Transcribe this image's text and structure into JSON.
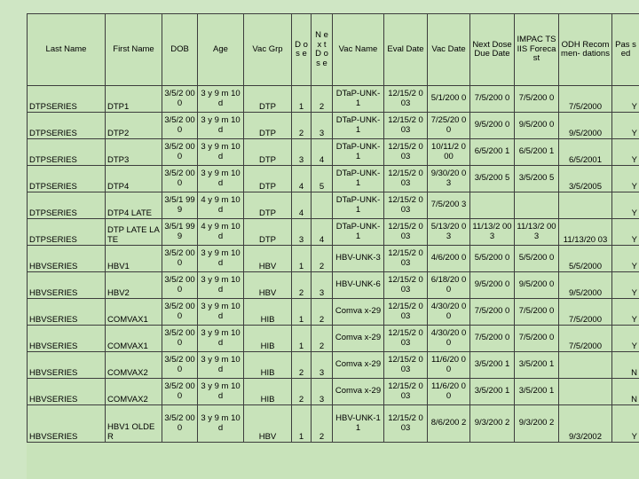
{
  "headers": [
    "Last Name",
    "First Name",
    "DOB",
    "Age",
    "Vac Grp",
    "D os e",
    "N ex t D os e",
    "Vac Name",
    "Eval Date",
    "Vac Date",
    "Next Dose Due Date",
    "IMPAC TSIIS Foreca st",
    "ODH Recom men- dations",
    "Pas sed"
  ],
  "rows": [
    {
      "last": "DTPSERIES",
      "first": "DTP1",
      "dob": "3/5/2 000",
      "age": "3 y 9 m 10 d",
      "grp": "DTP",
      "dose": "1",
      "next_dose": "2",
      "vac_name": "DTaP-UNK-1",
      "eval": "12/15/2 003",
      "vac_date": "5/1/200 0",
      "due": "7/5/200 0",
      "forecast": "7/5/200 0",
      "odh": "7/5/2000",
      "passed": "Y"
    },
    {
      "last": "DTPSERIES",
      "first": "DTP2",
      "dob": "3/5/2 000",
      "age": "3 y 9 m 10 d",
      "grp": "DTP",
      "dose": "2",
      "next_dose": "3",
      "vac_name": "DTaP-UNK-1",
      "eval": "12/15/2 003",
      "vac_date": "7/25/20 00",
      "due": "9/5/200 0",
      "forecast": "9/5/200 0",
      "odh": "9/5/2000",
      "passed": "Y"
    },
    {
      "last": "DTPSERIES",
      "first": "DTP3",
      "dob": "3/5/2 000",
      "age": "3 y 9 m 10 d",
      "grp": "DTP",
      "dose": "3",
      "next_dose": "4",
      "vac_name": "DTaP-UNK-1",
      "eval": "12/15/2 003",
      "vac_date": "10/11/2 000",
      "due": "6/5/200 1",
      "forecast": "6/5/200 1",
      "odh": "6/5/2001",
      "passed": "Y"
    },
    {
      "last": "DTPSERIES",
      "first": "DTP4",
      "dob": "3/5/2 000",
      "age": "3 y 9 m 10 d",
      "grp": "DTP",
      "dose": "4",
      "next_dose": "5",
      "vac_name": "DTaP-UNK-1",
      "eval": "12/15/2 003",
      "vac_date": "9/30/20 03",
      "due": "3/5/200 5",
      "forecast": "3/5/200 5",
      "odh": "3/5/2005",
      "passed": "Y"
    },
    {
      "last": "DTPSERIES",
      "first": "DTP4 LATE",
      "dob": "3/5/1 999",
      "age": "4 y 9 m 10 d",
      "grp": "DTP",
      "dose": "4",
      "next_dose": "",
      "vac_name": "DTaP-UNK-1",
      "eval": "12/15/2 003",
      "vac_date": "7/5/200 3",
      "due": "",
      "forecast": "",
      "odh": "",
      "passed": "Y"
    },
    {
      "last": "DTPSERIES",
      "first": "DTP LATE LATE",
      "dob": "3/5/1 999",
      "age": "4 y 9 m 10 d",
      "grp": "DTP",
      "dose": "3",
      "next_dose": "4",
      "vac_name": "DTaP-UNK-1",
      "eval": "12/15/2 003",
      "vac_date": "5/13/20 03",
      "due": "11/13/2 003",
      "forecast": "11/13/2 003",
      "odh": "11/13/20 03",
      "passed": "Y"
    },
    {
      "last": "HBVSERIES",
      "first": "HBV1",
      "dob": "3/5/2 000",
      "age": "3 y 9 m 10 d",
      "grp": "HBV",
      "dose": "1",
      "next_dose": "2",
      "vac_name": "HBV-UNK-3",
      "eval": "12/15/2 003",
      "vac_date": "4/6/200 0",
      "due": "5/5/200 0",
      "forecast": "5/5/200 0",
      "odh": "5/5/2000",
      "passed": "Y"
    },
    {
      "last": "HBVSERIES",
      "first": "HBV2",
      "dob": "3/5/2 000",
      "age": "3 y 9 m 10 d",
      "grp": "HBV",
      "dose": "2",
      "next_dose": "3",
      "vac_name": "HBV-UNK-6",
      "eval": "12/15/2 003",
      "vac_date": "6/18/20 00",
      "due": "9/5/200 0",
      "forecast": "9/5/200 0",
      "odh": "9/5/2000",
      "passed": "Y"
    },
    {
      "last": "HBVSERIES",
      "first": "COMVAX1",
      "dob": "3/5/2 000",
      "age": "3 y 9 m 10 d",
      "grp": "HIB",
      "dose": "1",
      "next_dose": "2",
      "vac_name": "Comva x-29",
      "eval": "12/15/2 003",
      "vac_date": "4/30/20 00",
      "due": "7/5/200 0",
      "forecast": "7/5/200 0",
      "odh": "7/5/2000",
      "passed": "Y"
    },
    {
      "last": "HBVSERIES",
      "first": "COMVAX1",
      "dob": "3/5/2 000",
      "age": "3 y 9 m 10 d",
      "grp": "HIB",
      "dose": "1",
      "next_dose": "2",
      "vac_name": "Comva x-29",
      "eval": "12/15/2 003",
      "vac_date": "4/30/20 00",
      "due": "7/5/200 0",
      "forecast": "7/5/200 0",
      "odh": "7/5/2000",
      "passed": "Y"
    },
    {
      "last": "HBVSERIES",
      "first": "COMVAX2",
      "dob": "3/5/2 000",
      "age": "3 y 9 m 10 d",
      "grp": "HIB",
      "dose": "2",
      "next_dose": "3",
      "vac_name": "Comva x-29",
      "eval": "12/15/2 003",
      "vac_date": "11/6/20 00",
      "due": "3/5/200 1",
      "forecast": "3/5/200 1",
      "odh": "",
      "passed": "N"
    },
    {
      "last": "HBVSERIES",
      "first": "COMVAX2",
      "dob": "3/5/2 000",
      "age": "3 y 9 m 10 d",
      "grp": "HIB",
      "dose": "2",
      "next_dose": "3",
      "vac_name": "Comva x-29",
      "eval": "12/15/2 003",
      "vac_date": "11/6/20 00",
      "due": "3/5/200 1",
      "forecast": "3/5/200 1",
      "odh": "",
      "passed": "N"
    },
    {
      "last": "HBVSERIES",
      "first": "HBV1 OLDER",
      "dob": "3/5/2 000",
      "age": "3 y 9 m 10 d",
      "grp": "HBV",
      "dose": "1",
      "next_dose": "2",
      "vac_name": "HBV-UNK-11",
      "eval": "12/15/2 003",
      "vac_date": "8/6/200 2",
      "due": "9/3/200 2",
      "forecast": "9/3/200 2",
      "odh": "9/3/2002",
      "passed": "Y"
    }
  ]
}
